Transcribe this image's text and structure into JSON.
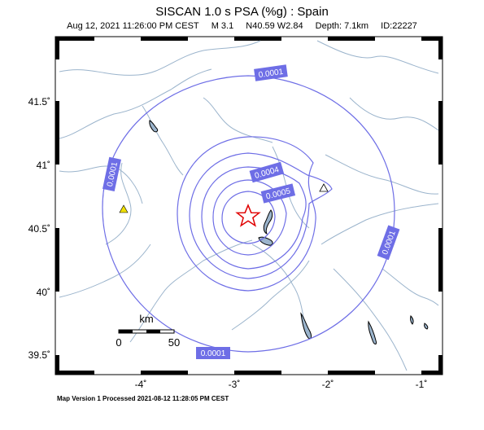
{
  "header": {
    "title": "SISCAN 1.0 s PSA (%g) : Spain",
    "date": "Aug 12, 2021 11:26:00 PM CEST",
    "magnitude": "M 3.1",
    "location": "N40.59 W2.84",
    "depth": "Depth: 7.1km",
    "event_id": "ID:22227"
  },
  "footer": {
    "text": "Map Version 1 Processed 2021-08-12 11:28:05 PM CEST"
  },
  "axes": {
    "lat_ticks": [
      "41.5˚",
      "41˚",
      "40.5˚",
      "40˚",
      "39.5˚"
    ],
    "lon_ticks": [
      "-4˚",
      "-3˚",
      "-2˚",
      "-1˚"
    ]
  },
  "scale_bar": {
    "unit": "km",
    "start": "0",
    "end": "50"
  },
  "contours": {
    "labels": [
      "0.0001",
      "0.0001",
      "0.0001",
      "0.0001",
      "0.0004",
      "0.0005"
    ]
  },
  "colors": {
    "contour": "#6e6ee6",
    "label_bg": "#6e6ee6",
    "rivers": "#9bb4cc",
    "epicenter": "#e00000",
    "station": "#f0e000"
  },
  "markers": {
    "epicenter": "star-icon",
    "station_filled": "triangle-icon",
    "station_open": "triangle-icon"
  }
}
